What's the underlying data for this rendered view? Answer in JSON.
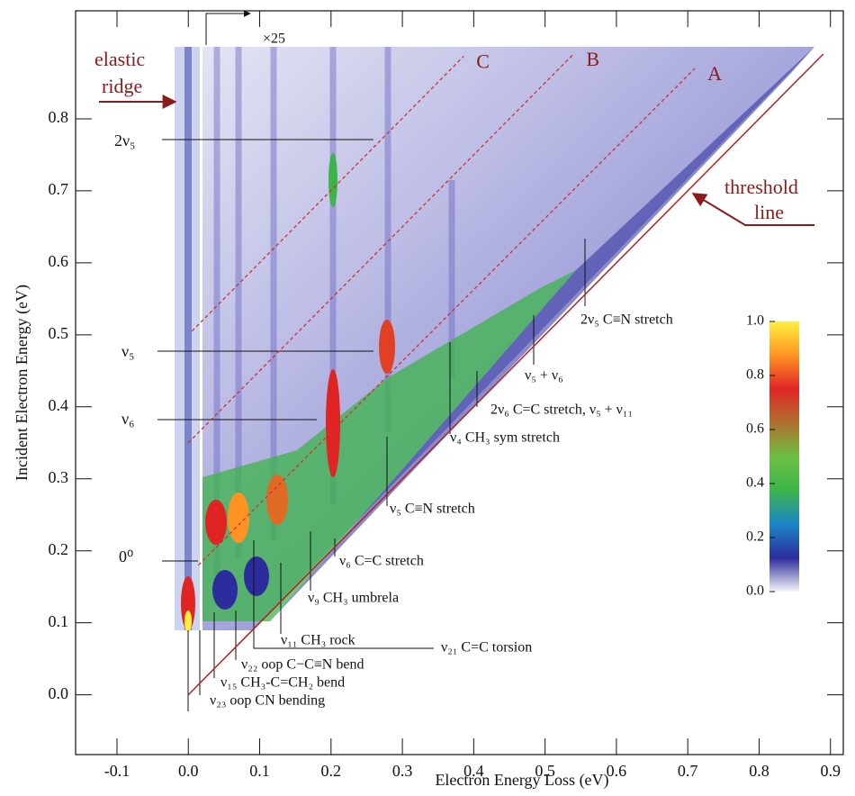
{
  "chart_data": {
    "type": "heatmap",
    "xlabel": "Electron Energy Loss (eV)",
    "ylabel": "Incident Electron Energy (eV)",
    "xlim": [
      -0.158,
      0.918
    ],
    "ylim": [
      -0.083,
      0.95
    ],
    "xticks": [
      -0.1,
      {
        "value": 0,
        "label": "0.0"
      },
      0.1,
      0.2,
      0.3,
      0.4,
      0.5,
      0.6,
      0.7,
      0.8,
      0.9
    ],
    "yticks": [
      {
        "value": 0,
        "label": "0.0"
      },
      0.1,
      0.2,
      0.3,
      0.4,
      0.5,
      0.6,
      0.7,
      0.8
    ],
    "threshold_line": {
      "x": [
        0,
        0.89
      ],
      "y": [
        0,
        0.89
      ],
      "color": "#b22222"
    },
    "dashed_lines": [
      {
        "name": "A",
        "x": [
          0.014,
          0.71
        ],
        "y": [
          0.18,
          0.87
        ]
      },
      {
        "name": "B",
        "x": [
          0.0,
          0.54
        ],
        "y": [
          0.35,
          0.89
        ]
      },
      {
        "name": "C",
        "x": [
          0.005,
          0.386
        ],
        "y": [
          0.505,
          0.887
        ]
      }
    ],
    "dashed_color": "#d03030",
    "colorbar": {
      "ticks": [
        {
          "value": 0,
          "label": "0.0"
        },
        0.2,
        0.4,
        0.6,
        0.8,
        {
          "value": 1,
          "label": "1.0"
        }
      ],
      "colors": [
        "#f4f4fb",
        "#2c2c9c",
        "#1c86c8",
        "#3cb44a",
        "#6cc040",
        "#b07030",
        "#e02424",
        "#ff9424",
        "#fff040"
      ]
    },
    "annotations": {
      "elastic": "elastic",
      "ridge": "ridge",
      "times25": "×25",
      "threshold": "threshold",
      "line": "line",
      "two_nu5": "2ν₅",
      "nu5": "ν₅",
      "nu6": "ν₆",
      "zero": "0⁰",
      "a2nu5": "2ν₅ C≡N stretch",
      "nu5nu6": "ν₅ + ν₆",
      "a2nu6": "2ν₆ C=C stretch,  ν₅ + ν₁₁",
      "nu4": "ν₄ CH₃ sym stretch",
      "nu5s": "ν₅ C≡N stretch",
      "nu6s": "ν₆ C=C stretch",
      "nu9": "ν₉ CH₃ umbrela",
      "nu11": "ν₁₁  CH₃ rock",
      "nu21": "ν₂₁ C=C torsion",
      "nu22": "ν₂₂ oop C−C≡N bend",
      "nu15": "ν₁₅ CH₃-C=CH₂ bend",
      "nu23": "ν₂₃ oop CN bending"
    }
  }
}
